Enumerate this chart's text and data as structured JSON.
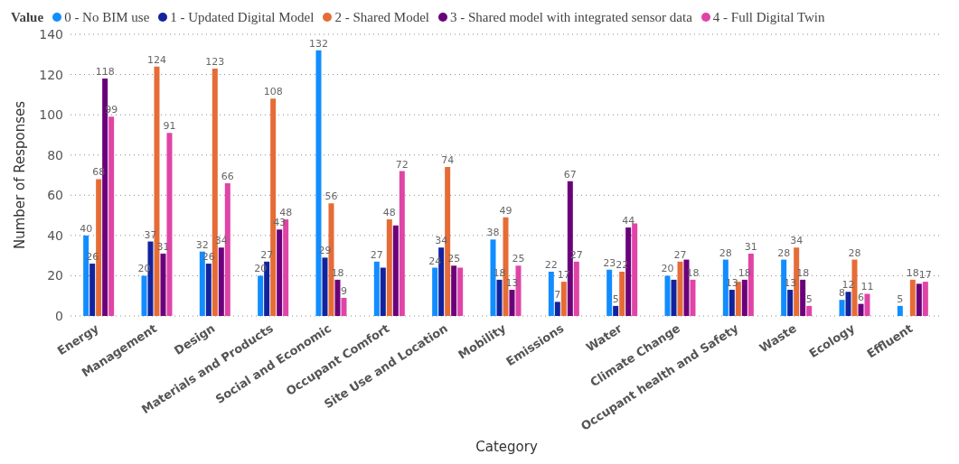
{
  "chart_data": {
    "type": "bar",
    "xlabel": "Category",
    "ylabel": "Number of Responses",
    "legend_title": "Value",
    "legend": "top left",
    "grid": "y",
    "ylim": [
      0,
      140
    ],
    "yticks": [
      0,
      20,
      40,
      60,
      80,
      100,
      120,
      140
    ],
    "categories": [
      "Energy",
      "Management",
      "Design",
      "Materials and Products",
      "Social and Economic",
      "Occupant Comfort",
      "Site Use and Location",
      "Mobility",
      "Emissions",
      "Water",
      "Climate Change",
      "Occupant health and Safety",
      "Waste",
      "Ecology",
      "Effluent"
    ],
    "series": [
      {
        "name": "0 - No BIM use",
        "color": "#118dff",
        "values": [
          40,
          20,
          32,
          20,
          132,
          27,
          24,
          38,
          22,
          23,
          20,
          28,
          28,
          8,
          5
        ],
        "value_labels": [
          "40",
          "20",
          "32",
          "20",
          "132",
          "27",
          "24",
          "38",
          "22",
          "23",
          "20",
          "28",
          "28",
          "8",
          "5"
        ]
      },
      {
        "name": "1 - Updated Digital Model",
        "color": "#12239e",
        "values": [
          26,
          37,
          26,
          27,
          29,
          24,
          34,
          18,
          7,
          5,
          18,
          13,
          13,
          12,
          null
        ],
        "value_labels": [
          "26",
          "37",
          "26",
          "27",
          "29",
          null,
          "34",
          "18",
          "7",
          "5",
          null,
          "13",
          "13",
          "12",
          null
        ]
      },
      {
        "name": "2 - Shared Model",
        "color": "#e66c37",
        "values": [
          68,
          124,
          123,
          108,
          56,
          48,
          74,
          49,
          17,
          22,
          27,
          17,
          34,
          28,
          18
        ],
        "value_labels": [
          "68",
          "124",
          "123",
          "108",
          "56",
          "48",
          "74",
          "49",
          "17",
          "22",
          "27",
          null,
          "34",
          "28",
          "18"
        ]
      },
      {
        "name": "3 - Shared model with integrated sensor data",
        "color": "#6b007b",
        "values": [
          118,
          31,
          34,
          43,
          18,
          45,
          25,
          13,
          67,
          44,
          28,
          18,
          18,
          6,
          16
        ],
        "value_labels": [
          "118",
          "31",
          "34",
          "43",
          "18",
          null,
          "25",
          "13",
          "67",
          "44",
          null,
          "18",
          "18",
          "6",
          null
        ]
      },
      {
        "name": "4 - Full Digital Twin",
        "color": "#e044a7",
        "values": [
          99,
          91,
          66,
          48,
          9,
          72,
          24,
          25,
          27,
          46,
          18,
          31,
          5,
          11,
          17
        ],
        "value_labels": [
          "99",
          "91",
          "66",
          "48",
          "9",
          "72",
          null,
          "25",
          "27",
          null,
          "18",
          "31",
          "5",
          "11",
          "17"
        ]
      }
    ]
  }
}
